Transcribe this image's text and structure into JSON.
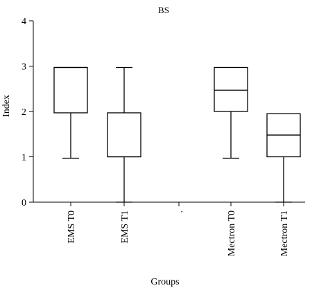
{
  "chart_data": {
    "type": "box",
    "title": "BS",
    "xlabel": "Groups",
    "ylabel": "Index",
    "ylim": [
      0,
      4
    ],
    "yticks": [
      "0",
      "1",
      "2",
      "3",
      "4"
    ],
    "categories": [
      "EMS T0",
      "EMS T1",
      ".",
      "Mectron T0",
      "Mectron T1"
    ],
    "boxes": [
      {
        "category": "EMS T0",
        "min": 0.97,
        "q1": 1.97,
        "median": 2.97,
        "q3": 2.97,
        "max": 2.97
      },
      {
        "category": "EMS T1",
        "min": 0.0,
        "q1": 1.0,
        "median": 1.0,
        "q3": 1.97,
        "max": 2.97
      },
      {
        "category": ".",
        "min": null,
        "q1": null,
        "median": null,
        "q3": null,
        "max": null
      },
      {
        "category": "Mectron T0",
        "min": 0.97,
        "q1": 2.0,
        "median": 2.47,
        "q3": 2.97,
        "max": 2.97
      },
      {
        "category": "Mectron T1",
        "min": 0.0,
        "q1": 1.0,
        "median": 1.48,
        "q3": 1.95,
        "max": 1.95
      }
    ],
    "grid": false,
    "legend": "none"
  }
}
